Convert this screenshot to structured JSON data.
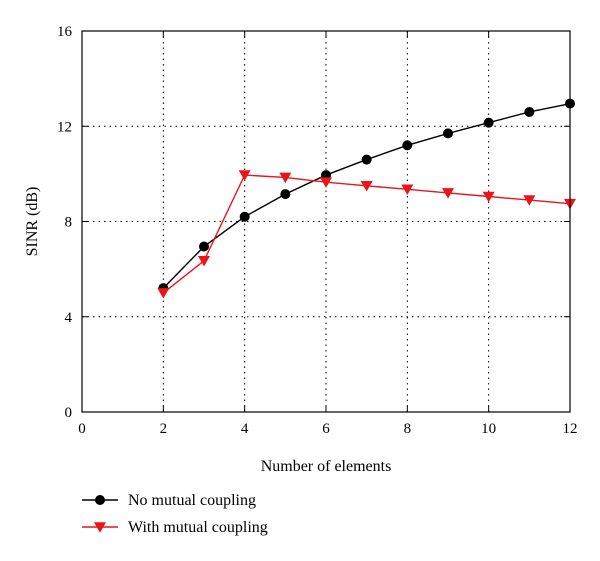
{
  "chart_data": {
    "type": "line",
    "xlabel": "Number of elements",
    "ylabel": "SINR (dB)",
    "xlim": [
      0,
      12
    ],
    "ylim": [
      0,
      16
    ],
    "xticks": [
      "0",
      "2",
      "4",
      "6",
      "8",
      "10",
      "12"
    ],
    "yticks": [
      "0",
      "4",
      "8",
      "12",
      "16"
    ],
    "grid": "dotted",
    "legend_position": "below-left",
    "series": [
      {
        "name": "No mutual coupling",
        "color": "#000000",
        "marker": "circle",
        "x": [
          2,
          3,
          4,
          5,
          6,
          7,
          8,
          9,
          10,
          11,
          12
        ],
        "y": [
          5.2,
          6.95,
          8.2,
          9.15,
          9.95,
          10.6,
          11.2,
          11.7,
          12.15,
          12.6,
          12.95
        ]
      },
      {
        "name": "With mutual coupling",
        "color": "#e8151b",
        "marker": "triangle-down",
        "x": [
          2,
          3,
          4,
          5,
          6,
          7,
          8,
          9,
          10,
          11,
          12
        ],
        "y": [
          5.0,
          6.35,
          9.95,
          9.85,
          9.65,
          9.5,
          9.35,
          9.2,
          9.05,
          8.9,
          8.75
        ]
      }
    ]
  }
}
